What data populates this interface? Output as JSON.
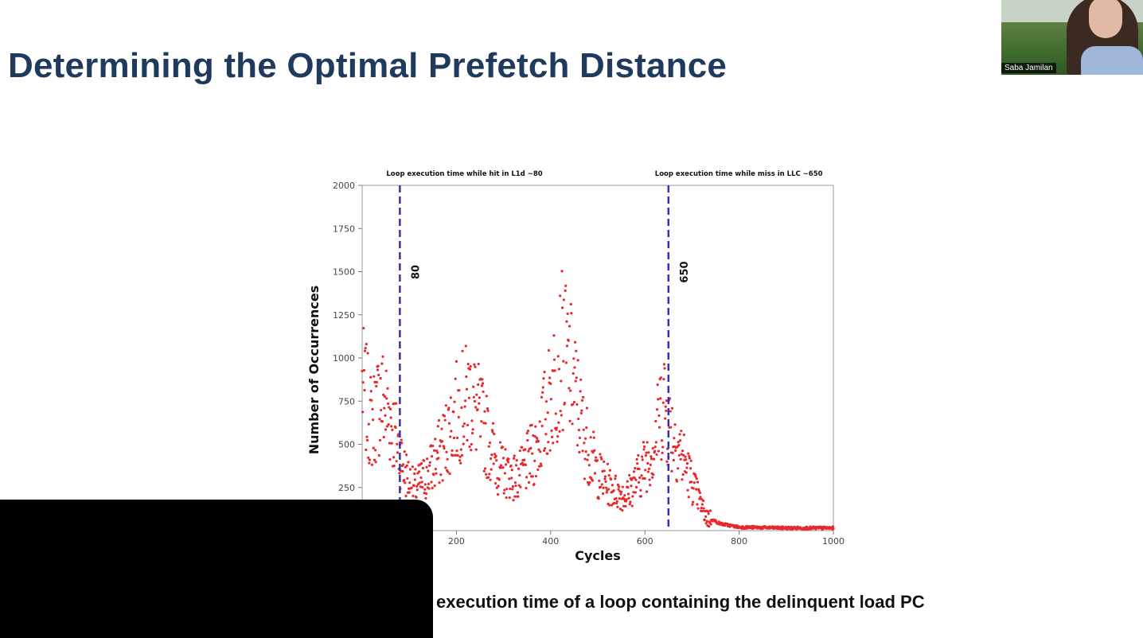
{
  "slide": {
    "title": "Determining the Optimal Prefetch Distance",
    "caption": "execution time of a loop containing the delinquent load PC"
  },
  "video": {
    "participant_name": "Saba Jamilan"
  },
  "colors": {
    "title": "#1f3a5c",
    "points": "#e8282a",
    "vlines": "#3b2fb4"
  },
  "chart_data": {
    "type": "scatter",
    "xlabel": "Cycles",
    "ylabel": "Number of Occurrences",
    "xlim": [
      0,
      1000
    ],
    "ylim": [
      0,
      2000
    ],
    "x_ticks": [
      200,
      400,
      600,
      800,
      1000
    ],
    "y_ticks": [
      250,
      500,
      750,
      1000,
      1250,
      1500,
      1750,
      2000
    ],
    "grid": false,
    "annotations": [
      {
        "x": 80,
        "text": "80",
        "top_label": "Loop execution time while hit in L1d ~80"
      },
      {
        "x": 650,
        "text": "650",
        "top_label": "Loop execution time while miss in LLC ~650"
      }
    ],
    "trend": [
      [
        0,
        850
      ],
      [
        20,
        620
      ],
      [
        40,
        780
      ],
      [
        60,
        650
      ],
      [
        75,
        500
      ],
      [
        90,
        350
      ],
      [
        110,
        240
      ],
      [
        140,
        330
      ],
      [
        170,
        480
      ],
      [
        200,
        680
      ],
      [
        230,
        780
      ],
      [
        255,
        620
      ],
      [
        290,
        360
      ],
      [
        330,
        300
      ],
      [
        370,
        480
      ],
      [
        400,
        780
      ],
      [
        425,
        1050
      ],
      [
        445,
        900
      ],
      [
        470,
        560
      ],
      [
        500,
        330
      ],
      [
        530,
        240
      ],
      [
        560,
        200
      ],
      [
        590,
        330
      ],
      [
        620,
        500
      ],
      [
        640,
        780
      ],
      [
        650,
        620
      ],
      [
        670,
        500
      ],
      [
        700,
        280
      ],
      [
        730,
        80
      ],
      [
        760,
        40
      ],
      [
        800,
        20
      ],
      [
        900,
        15
      ],
      [
        1000,
        15
      ]
    ]
  }
}
